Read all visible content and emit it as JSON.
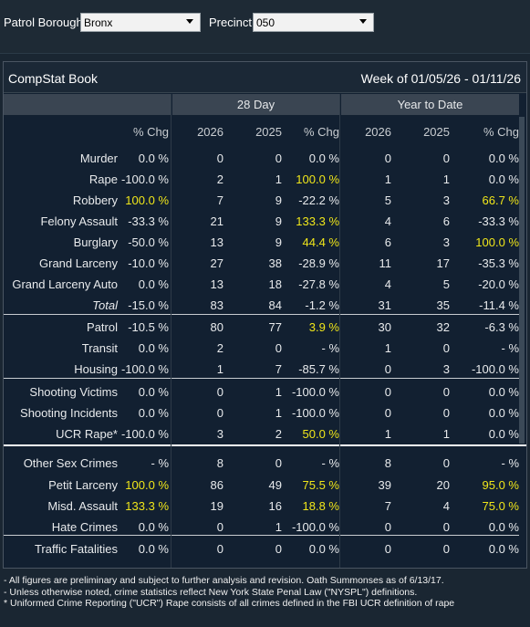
{
  "filters": {
    "borough_label": "Patrol Borough:",
    "borough_value": "Bronx",
    "precinct_label": "Precinct:",
    "precinct_value": "050"
  },
  "panel": {
    "title": "CompStat Book",
    "week": "Week of 01/05/26 - 01/11/26"
  },
  "groups": {
    "day28": "28 Day",
    "ytd": "Year to Date"
  },
  "headers": [
    "% Chg",
    "2026",
    "2025",
    "% Chg",
    "2026",
    "2025",
    "% Chg"
  ],
  "rows": [
    {
      "label": "Murder",
      "c": [
        "0.0 %",
        "0",
        "0",
        "0.0 %",
        "0",
        "0",
        "0.0 %"
      ],
      "hl": []
    },
    {
      "label": "Rape",
      "c": [
        "-100.0 %",
        "2",
        "1",
        "100.0 %",
        "1",
        "1",
        "0.0 %"
      ],
      "hl": [
        3
      ]
    },
    {
      "label": "Robbery",
      "c": [
        "100.0 %",
        "7",
        "9",
        "-22.2 %",
        "5",
        "3",
        "66.7 %"
      ],
      "hl": [
        0,
        6
      ]
    },
    {
      "label": "Felony Assault",
      "c": [
        "-33.3 %",
        "21",
        "9",
        "133.3 %",
        "4",
        "6",
        "-33.3 %"
      ],
      "hl": [
        3
      ]
    },
    {
      "label": "Burglary",
      "c": [
        "-50.0 %",
        "13",
        "9",
        "44.4 %",
        "6",
        "3",
        "100.0 %"
      ],
      "hl": [
        3,
        6
      ]
    },
    {
      "label": "Grand Larceny",
      "c": [
        "-10.0 %",
        "27",
        "38",
        "-28.9 %",
        "11",
        "17",
        "-35.3 %"
      ],
      "hl": []
    },
    {
      "label": "Grand Larceny Auto",
      "c": [
        "0.0 %",
        "13",
        "18",
        "-27.8 %",
        "4",
        "5",
        "-20.0 %"
      ],
      "hl": []
    },
    {
      "label": "Total",
      "c": [
        "-15.0 %",
        "83",
        "84",
        "-1.2 %",
        "31",
        "35",
        "-11.4 %"
      ],
      "hl": []
    },
    {
      "label": "Patrol",
      "c": [
        "-10.5 %",
        "80",
        "77",
        "3.9 %",
        "30",
        "32",
        "-6.3 %"
      ],
      "hl": [
        3
      ]
    },
    {
      "label": "Transit",
      "c": [
        "0.0 %",
        "2",
        "0",
        "- %",
        "1",
        "0",
        "- %"
      ],
      "hl": []
    },
    {
      "label": "Housing",
      "c": [
        "-100.0 %",
        "1",
        "7",
        "-85.7 %",
        "0",
        "3",
        "-100.0 %"
      ],
      "hl": []
    },
    {
      "label": "Shooting Victims",
      "c": [
        "0.0 %",
        "0",
        "1",
        "-100.0 %",
        "0",
        "0",
        "0.0 %"
      ],
      "hl": []
    },
    {
      "label": "Shooting Incidents",
      "c": [
        "0.0 %",
        "0",
        "1",
        "-100.0 %",
        "0",
        "0",
        "0.0 %"
      ],
      "hl": []
    },
    {
      "label": "UCR Rape*",
      "c": [
        "-100.0 %",
        "3",
        "2",
        "50.0 %",
        "1",
        "1",
        "0.0 %"
      ],
      "hl": [
        3
      ]
    },
    {
      "label": "Other Sex Crimes",
      "c": [
        "- %",
        "8",
        "0",
        "- %",
        "8",
        "0",
        "- %"
      ],
      "hl": []
    },
    {
      "label": "Petit Larceny",
      "c": [
        "100.0 %",
        "86",
        "49",
        "75.5 %",
        "39",
        "20",
        "95.0 %"
      ],
      "hl": [
        0,
        3,
        6
      ]
    },
    {
      "label": "Misd. Assault",
      "c": [
        "133.3 %",
        "19",
        "16",
        "18.8 %",
        "7",
        "4",
        "75.0 %"
      ],
      "hl": [
        0,
        3,
        6
      ]
    },
    {
      "label": "Hate Crimes",
      "c": [
        "0.0 %",
        "0",
        "1",
        "-100.0 %",
        "0",
        "0",
        "0.0 %"
      ],
      "hl": []
    },
    {
      "label": "Traffic Fatalities",
      "c": [
        "0.0 %",
        "0",
        "0",
        "0.0 %",
        "0",
        "0",
        "0.0 %"
      ],
      "hl": []
    }
  ],
  "footnotes": [
    "- All figures are preliminary and subject to further analysis and revision. Oath Summonses as of 6/13/17.",
    "- Unless otherwise noted, crime statistics reflect New York State Penal Law (\"NYSPL\") definitions.",
    "* Uniformed Crime Reporting (\"UCR\") Rape consists of all crimes defined in the FBI UCR definition of rape"
  ]
}
